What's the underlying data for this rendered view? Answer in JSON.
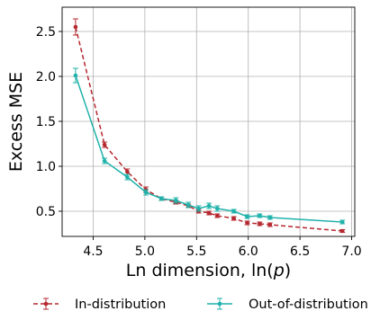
{
  "chart_data": {
    "type": "line",
    "title": "",
    "xlabel": "Ln dimension, ln(",
    "xlabel_var": "p",
    "xlabel_close": ")",
    "ylabel": "Excess MSE",
    "xlim": [
      4.2,
      7.03
    ],
    "ylim": [
      0.22,
      2.77
    ],
    "xticks": [
      4.5,
      5.0,
      5.5,
      6.0,
      6.5,
      7.0
    ],
    "xtick_labels": [
      "4.5",
      "5.0",
      "5.5",
      "6.0",
      "6.5",
      "7.0"
    ],
    "yticks": [
      0.5,
      1.0,
      1.5,
      2.0,
      2.5
    ],
    "ytick_labels": [
      "0.5",
      "1.0",
      "1.5",
      "2.0",
      "2.5"
    ],
    "grid": true,
    "legend_position": "bottom",
    "series": [
      {
        "name": "In-distribution",
        "color": "#b5282f",
        "line_style": "dashed",
        "marker": "circle",
        "x": [
          4.33,
          4.61,
          4.83,
          5.01,
          5.16,
          5.3,
          5.42,
          5.52,
          5.62,
          5.7,
          5.86,
          5.99,
          6.11,
          6.21,
          6.91
        ],
        "y": [
          2.55,
          1.24,
          0.94,
          0.74,
          0.64,
          0.6,
          0.56,
          0.5,
          0.48,
          0.45,
          0.42,
          0.37,
          0.36,
          0.35,
          0.28
        ],
        "err": [
          0.09,
          0.03,
          0.03,
          0.03,
          0.02,
          0.02,
          0.02,
          0.02,
          0.02,
          0.02,
          0.02,
          0.02,
          0.02,
          0.02,
          0.015
        ]
      },
      {
        "name": "Out-of-distribution",
        "color": "#20b2aa",
        "line_style": "solid",
        "marker": "circle",
        "x": [
          4.33,
          4.61,
          4.83,
          5.01,
          5.16,
          5.3,
          5.42,
          5.52,
          5.62,
          5.7,
          5.86,
          5.99,
          6.11,
          6.21,
          6.91
        ],
        "y": [
          2.01,
          1.06,
          0.88,
          0.71,
          0.64,
          0.62,
          0.57,
          0.53,
          0.56,
          0.53,
          0.5,
          0.44,
          0.45,
          0.43,
          0.38
        ],
        "err": [
          0.08,
          0.03,
          0.03,
          0.03,
          0.02,
          0.03,
          0.03,
          0.03,
          0.03,
          0.03,
          0.02,
          0.02,
          0.02,
          0.02,
          0.02
        ]
      }
    ]
  }
}
